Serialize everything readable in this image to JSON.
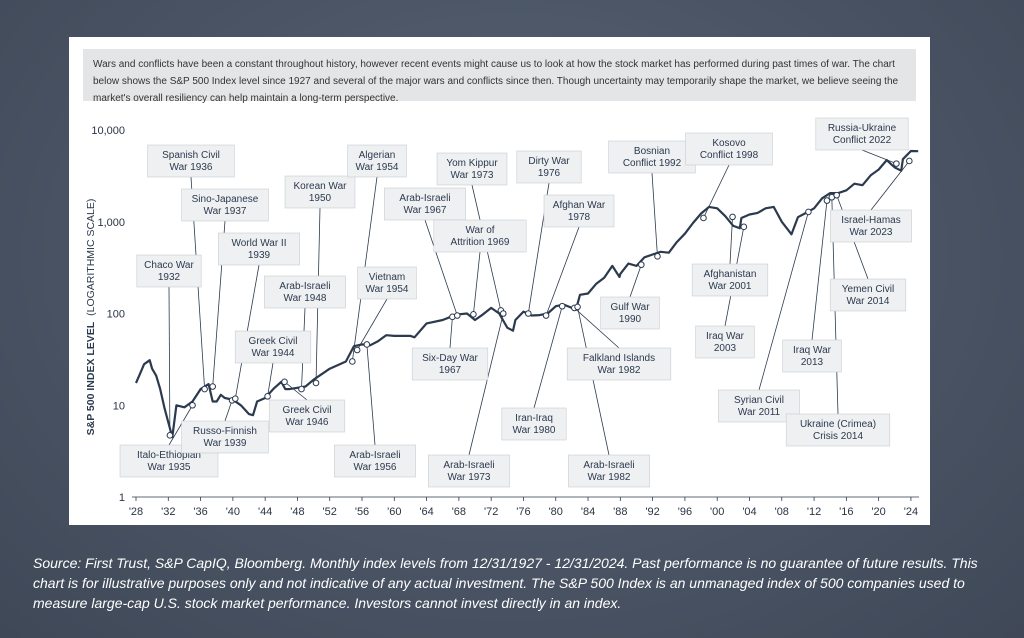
{
  "intro_text": "Wars and conflicts have been a constant throughout history, however recent events might cause us to look at how the stock market has performed during past times of war. The chart below shows the S&P 500 Index level since 1927 and several of the major wars and conflicts since then. Though uncertainty may temporarily shape the market, we believe seeing the market's overall resiliency can help maintain a long-term perspective.",
  "source_text": "Source: First Trust, S&P CapIQ, Bloomberg. Monthly index levels from 12/31/1927 - 12/31/2024. Past performance is no guarantee of future results. This chart is for illustrative purposes only and not indicative of any actual investment. The S&P 500 Index is an unmanaged index of 500 companies used to measure large-cap U.S. stock market performance. Investors cannot invest directly in an index.",
  "colors": {
    "line": "#2c3a4e",
    "marker_fill": "#ffffff",
    "annotation_bg": "#eef0f2",
    "page_bg": "#4a5464"
  },
  "chart_data": {
    "type": "line",
    "title": "",
    "ylabel_main": "S&P 500 INDEX LEVEL",
    "ylabel_sub": "(LOGARITHMIC SCALE)",
    "yscale": "log",
    "ylim": [
      1,
      10000
    ],
    "xlim": [
      1928,
      2025
    ],
    "ytick_labels": [
      "1",
      "10",
      "100",
      "1,000",
      "10,000"
    ],
    "ytick_values": [
      1,
      10,
      100,
      1000,
      10000
    ],
    "xtick_labels": [
      "'28",
      "'32",
      "'36",
      "'40",
      "'44",
      "'48",
      "'52",
      "'56",
      "'60",
      "'64",
      "'68",
      "'72",
      "'76",
      "'80",
      "'84",
      "'88",
      "'92",
      "'96",
      "'00",
      "'04",
      "'08",
      "'12",
      "'16",
      "'20",
      "'24"
    ],
    "xtick_values": [
      1928,
      1932,
      1936,
      1940,
      1944,
      1948,
      1952,
      1956,
      1960,
      1964,
      1968,
      1972,
      1976,
      1980,
      1984,
      1988,
      1992,
      1996,
      2000,
      2004,
      2008,
      2012,
      2016,
      2020,
      2024
    ],
    "series": [
      {
        "name": "",
        "x": [
          1928,
          1928.5,
          1929,
          1929.7,
          1930,
          1930.5,
          1931,
          1931.5,
          1932,
          1932.5,
          1933,
          1934,
          1935,
          1936,
          1937,
          1937.5,
          1938,
          1938.5,
          1939,
          1940,
          1941,
          1942,
          1942.5,
          1943,
          1944,
          1945,
          1946,
          1946.5,
          1947,
          1948,
          1949,
          1950,
          1952,
          1954,
          1955,
          1956,
          1957,
          1958,
          1959,
          1960,
          1962,
          1962.5,
          1964,
          1966,
          1967,
          1968,
          1969,
          1970,
          1971,
          1972,
          1973,
          1974,
          1974.7,
          1975,
          1976,
          1977,
          1978,
          1979,
          1980,
          1981,
          1982,
          1982.5,
          1983,
          1984,
          1985,
          1986,
          1987,
          1987.9,
          1988,
          1989,
          1990,
          1991,
          1992,
          1993,
          1994,
          1995,
          1996,
          1997,
          1998,
          1999,
          2000,
          2001,
          2002,
          2002.8,
          2003,
          2004,
          2005,
          2006,
          2007,
          2008,
          2009.2,
          2010,
          2011,
          2012,
          2013,
          2014,
          2015,
          2016,
          2017,
          2018,
          2019,
          2020,
          2021,
          2022,
          2022.8,
          2023,
          2024,
          2024.9
        ],
        "y": [
          17.5,
          22,
          28,
          31,
          25,
          21,
          15,
          9.5,
          6.5,
          4.5,
          10,
          9.5,
          11,
          15,
          17,
          11,
          11,
          13,
          12,
          11.5,
          10,
          8,
          7.8,
          11,
          12,
          15,
          18,
          15,
          15,
          15.5,
          16,
          19,
          25,
          30,
          44,
          46,
          45,
          50,
          58,
          57,
          57,
          55,
          78,
          85,
          92,
          98,
          100,
          85,
          98,
          115,
          100,
          70,
          65,
          85,
          105,
          95,
          96,
          100,
          120,
          125,
          115,
          110,
          160,
          165,
          210,
          245,
          330,
          250,
          270,
          350,
          330,
          410,
          440,
          470,
          460,
          600,
          740,
          970,
          1230,
          1450,
          1400,
          1150,
          900,
          850,
          1100,
          1200,
          1250,
          1400,
          1450,
          1000,
          730,
          1120,
          1250,
          1400,
          1800,
          2050,
          2050,
          2200,
          2600,
          2500,
          3200,
          3700,
          4700,
          3900,
          3600,
          4800,
          5900,
          5880
        ]
      }
    ],
    "markers": [
      {
        "label": "Chaco War 1932",
        "x": 1932.2,
        "y": 4.7
      },
      {
        "label": "Italo-Ethiopian War 1935",
        "x": 1935.0,
        "y": 10
      },
      {
        "label": "Spanish Civil War 1936",
        "x": 1936.5,
        "y": 15
      },
      {
        "label": "Sino-Japanese War 1937",
        "x": 1937.5,
        "y": 16
      },
      {
        "label": "Russo-Finnish War 1939",
        "x": 1939.9,
        "y": 11.3
      },
      {
        "label": "World War II 1939",
        "x": 1940.3,
        "y": 11.8
      },
      {
        "label": "Greek Civil War 1944",
        "x": 1944.3,
        "y": 12.5
      },
      {
        "label": "Greek Civil War 1946",
        "x": 1946.4,
        "y": 18
      },
      {
        "label": "Arab-Israeli War 1948",
        "x": 1948.5,
        "y": 15
      },
      {
        "label": "Korean War 1950",
        "x": 1950.3,
        "y": 17.5
      },
      {
        "label": "Algerian War 1954",
        "x": 1954.8,
        "y": 30
      },
      {
        "label": "Vietnam War 1954",
        "x": 1955.4,
        "y": 40
      },
      {
        "label": "Arab-Israeli War 1956",
        "x": 1956.6,
        "y": 46
      },
      {
        "label": "Six-Day War 1967",
        "x": 1967.2,
        "y": 92
      },
      {
        "label": "Arab-Israeli War 1967",
        "x": 1967.8,
        "y": 95
      },
      {
        "label": "War of Attrition 1969",
        "x": 1969.8,
        "y": 98
      },
      {
        "label": "Yom Kippur War 1973",
        "x": 1973.2,
        "y": 108
      },
      {
        "label": "Arab-Israeli War 1973",
        "x": 1973.5,
        "y": 100
      },
      {
        "label": "Dirty War 1976",
        "x": 1976.6,
        "y": 100
      },
      {
        "label": "Afghan War 1978",
        "x": 1978.8,
        "y": 95
      },
      {
        "label": "Iran-Iraq War 1980",
        "x": 1980.8,
        "y": 120
      },
      {
        "label": "Falkland Islands War 1982",
        "x": 1982.3,
        "y": 115
      },
      {
        "label": "Arab-Israeli War 1982",
        "x": 1982.7,
        "y": 118
      },
      {
        "label": "Gulf War 1990",
        "x": 1990.6,
        "y": 340
      },
      {
        "label": "Bosnian Conflict 1992",
        "x": 1992.6,
        "y": 420
      },
      {
        "label": "Kosovo Conflict 1998",
        "x": 1998.3,
        "y": 1100
      },
      {
        "label": "Afghanistan War 2001",
        "x": 2001.9,
        "y": 1130
      },
      {
        "label": "Iraq War 2003",
        "x": 2003.3,
        "y": 880
      },
      {
        "label": "Syrian Civil War 2011",
        "x": 2011.3,
        "y": 1280
      },
      {
        "label": "Iraq War 2013",
        "x": 2013.6,
        "y": 1700
      },
      {
        "label": "Ukraine (Crimea) Crisis 2014",
        "x": 2014.2,
        "y": 1850
      },
      {
        "label": "Yemen Civil War 2014",
        "x": 2014.8,
        "y": 1950
      },
      {
        "label": "Russia-Ukraine Conflict 2022",
        "x": 2022.2,
        "y": 4300
      },
      {
        "label": "Israel-Hamas War 2023",
        "x": 2023.8,
        "y": 4600
      }
    ],
    "annotations": [
      {
        "lines": [
          "Chaco War",
          "1932"
        ],
        "x": 1932.2,
        "y": 4.7
      },
      {
        "lines": [
          "Spanish Civil",
          "War 1936"
        ],
        "x": 1936.5,
        "y": 15
      },
      {
        "lines": [
          "Sino-Japanese",
          "War 1937"
        ],
        "x": 1937.5,
        "y": 16
      },
      {
        "lines": [
          "World War II",
          "1939"
        ],
        "x": 1940.3,
        "y": 11.8
      },
      {
        "lines": [
          "Italo-Ethiopian",
          "War 1935"
        ],
        "x": 1935.0,
        "y": 10
      },
      {
        "lines": [
          "Russo-Finnish",
          "War 1939"
        ],
        "x": 1939.9,
        "y": 11.3
      },
      {
        "lines": [
          "Greek Civil",
          "War 1944"
        ],
        "x": 1944.3,
        "y": 12.5
      },
      {
        "lines": [
          "Greek Civil",
          "War 1946"
        ],
        "x": 1946.4,
        "y": 18
      },
      {
        "lines": [
          "Arab-Israeli",
          "War 1948"
        ],
        "x": 1948.5,
        "y": 15
      },
      {
        "lines": [
          "Korean War",
          "1950"
        ],
        "x": 1950.3,
        "y": 17.5
      },
      {
        "lines": [
          "Algerian",
          "War 1954"
        ],
        "x": 1954.8,
        "y": 30
      },
      {
        "lines": [
          "Vietnam",
          "War 1954"
        ],
        "x": 1955.4,
        "y": 40
      },
      {
        "lines": [
          "Arab-Israeli",
          "War 1956"
        ],
        "x": 1956.6,
        "y": 46
      },
      {
        "lines": [
          "Arab-Israeli",
          "War 1967"
        ],
        "x": 1967.8,
        "y": 95
      },
      {
        "lines": [
          "Six-Day War",
          "1967"
        ],
        "x": 1967.2,
        "y": 92
      },
      {
        "lines": [
          "Yom Kippur",
          "War 1973"
        ],
        "x": 1973.2,
        "y": 108
      },
      {
        "lines": [
          "War of",
          "Attrition 1969"
        ],
        "x": 1969.8,
        "y": 98
      },
      {
        "lines": [
          "Arab-Israeli",
          "War 1973"
        ],
        "x": 1973.5,
        "y": 100
      },
      {
        "lines": [
          "Dirty War",
          "1976"
        ],
        "x": 1976.6,
        "y": 100
      },
      {
        "lines": [
          "Afghan War",
          "1978"
        ],
        "x": 1978.8,
        "y": 95
      },
      {
        "lines": [
          "Iran-Iraq",
          "War 1980"
        ],
        "x": 1980.8,
        "y": 120
      },
      {
        "lines": [
          "Arab-Israeli",
          "War 1982"
        ],
        "x": 1982.7,
        "y": 118
      },
      {
        "lines": [
          "Falkland Islands",
          "War 1982"
        ],
        "x": 1982.3,
        "y": 115
      },
      {
        "lines": [
          "Bosnian",
          "Conflict 1992"
        ],
        "x": 1992.6,
        "y": 420
      },
      {
        "lines": [
          "Gulf War",
          "1990"
        ],
        "x": 1990.6,
        "y": 340
      },
      {
        "lines": [
          "Kosovo",
          "Conflict 1998"
        ],
        "x": 1998.3,
        "y": 1100
      },
      {
        "lines": [
          "Afghanistan",
          "War 2001"
        ],
        "x": 2001.9,
        "y": 1130
      },
      {
        "lines": [
          "Iraq War",
          "2003"
        ],
        "x": 2003.3,
        "y": 880
      },
      {
        "lines": [
          "Syrian Civil",
          "War 2011"
        ],
        "x": 2011.3,
        "y": 1280
      },
      {
        "lines": [
          "Iraq War",
          "2013"
        ],
        "x": 2013.6,
        "y": 1700
      },
      {
        "lines": [
          "Ukraine (Crimea)",
          "Crisis 2014"
        ],
        "x": 2014.2,
        "y": 1850
      },
      {
        "lines": [
          "Yemen Civil",
          "War 2014"
        ],
        "x": 2014.8,
        "y": 1950
      },
      {
        "lines": [
          "Russia-Ukraine",
          "Conflict 2022"
        ],
        "x": 2022.2,
        "y": 4300
      },
      {
        "lines": [
          "Israel-Hamas",
          "War 2023"
        ],
        "x": 2023.8,
        "y": 4600
      }
    ],
    "grid": false,
    "legend": "none"
  }
}
